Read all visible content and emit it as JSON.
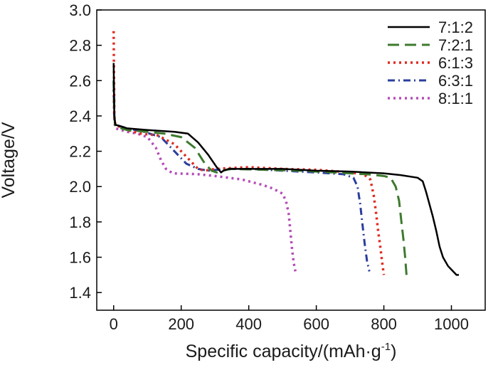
{
  "chart_data": {
    "type": "line",
    "title": "",
    "xlabel": "Specific capacity/(mAh·g",
    "xlabel_sup": "-1",
    "xlabel_close": ")",
    "ylabel": "Voltage/V",
    "xlim": [
      -50,
      1100
    ],
    "ylim": [
      1.3,
      3.0
    ],
    "xticks": [
      0,
      200,
      400,
      600,
      800,
      1000
    ],
    "yticks": [
      1.4,
      1.6,
      1.8,
      2.0,
      2.2,
      2.4,
      2.6,
      2.8,
      3.0
    ],
    "ytick_labels": [
      "1.4",
      "1.6",
      "1.8",
      "2.0",
      "2.2",
      "2.4",
      "2.6",
      "2.8",
      "3.0"
    ],
    "legend_position": "top-right",
    "series": [
      {
        "name": "7:1:2",
        "color": "#000000",
        "dash": "solid",
        "points": [
          [
            0,
            2.7
          ],
          [
            2,
            2.4
          ],
          [
            5,
            2.35
          ],
          [
            40,
            2.33
          ],
          [
            100,
            2.32
          ],
          [
            180,
            2.31
          ],
          [
            220,
            2.3
          ],
          [
            250,
            2.25
          ],
          [
            280,
            2.18
          ],
          [
            305,
            2.11
          ],
          [
            318,
            2.08
          ],
          [
            325,
            2.09
          ],
          [
            340,
            2.1
          ],
          [
            400,
            2.1
          ],
          [
            500,
            2.1
          ],
          [
            600,
            2.09
          ],
          [
            700,
            2.085
          ],
          [
            800,
            2.075
          ],
          [
            850,
            2.065
          ],
          [
            900,
            2.05
          ],
          [
            915,
            2.03
          ],
          [
            925,
            1.97
          ],
          [
            935,
            1.9
          ],
          [
            945,
            1.83
          ],
          [
            955,
            1.75
          ],
          [
            965,
            1.66
          ],
          [
            975,
            1.6
          ],
          [
            990,
            1.55
          ],
          [
            1005,
            1.52
          ],
          [
            1015,
            1.5
          ],
          [
            1022,
            1.5
          ]
        ]
      },
      {
        "name": "7:2:1",
        "color": "#3d7a2e",
        "dash": "long-dash",
        "points": [
          [
            0,
            2.6
          ],
          [
            2,
            2.4
          ],
          [
            5,
            2.34
          ],
          [
            40,
            2.32
          ],
          [
            100,
            2.31
          ],
          [
            150,
            2.3
          ],
          [
            200,
            2.28
          ],
          [
            240,
            2.22
          ],
          [
            270,
            2.13
          ],
          [
            290,
            2.09
          ],
          [
            305,
            2.08
          ],
          [
            320,
            2.09
          ],
          [
            350,
            2.1
          ],
          [
            450,
            2.095
          ],
          [
            550,
            2.09
          ],
          [
            650,
            2.08
          ],
          [
            750,
            2.07
          ],
          [
            800,
            2.06
          ],
          [
            820,
            2.05
          ],
          [
            835,
            2.0
          ],
          [
            845,
            1.92
          ],
          [
            852,
            1.8
          ],
          [
            858,
            1.7
          ],
          [
            863,
            1.6
          ],
          [
            867,
            1.5
          ]
        ]
      },
      {
        "name": "6:1:3",
        "color": "#e02a20",
        "dash": "dotted",
        "points": [
          [
            0,
            2.88
          ],
          [
            2,
            2.4
          ],
          [
            5,
            2.35
          ],
          [
            40,
            2.32
          ],
          [
            80,
            2.3
          ],
          [
            130,
            2.29
          ],
          [
            180,
            2.24
          ],
          [
            220,
            2.16
          ],
          [
            250,
            2.1
          ],
          [
            270,
            2.09
          ],
          [
            300,
            2.1
          ],
          [
            400,
            2.11
          ],
          [
            500,
            2.1
          ],
          [
            600,
            2.095
          ],
          [
            700,
            2.08
          ],
          [
            740,
            2.07
          ],
          [
            760,
            2.04
          ],
          [
            770,
            1.95
          ],
          [
            777,
            1.85
          ],
          [
            783,
            1.75
          ],
          [
            790,
            1.65
          ],
          [
            795,
            1.57
          ],
          [
            800,
            1.5
          ]
        ]
      },
      {
        "name": "6:3:1",
        "color": "#2b3e9c",
        "dash": "dash-dot",
        "points": [
          [
            0,
            2.6
          ],
          [
            2,
            2.4
          ],
          [
            5,
            2.35
          ],
          [
            40,
            2.33
          ],
          [
            90,
            2.31
          ],
          [
            140,
            2.28
          ],
          [
            180,
            2.2
          ],
          [
            215,
            2.13
          ],
          [
            250,
            2.1
          ],
          [
            280,
            2.09
          ],
          [
            330,
            2.1
          ],
          [
            400,
            2.1
          ],
          [
            500,
            2.09
          ],
          [
            600,
            2.08
          ],
          [
            680,
            2.07
          ],
          [
            710,
            2.05
          ],
          [
            722,
            2.0
          ],
          [
            730,
            1.9
          ],
          [
            737,
            1.78
          ],
          [
            743,
            1.68
          ],
          [
            750,
            1.58
          ],
          [
            757,
            1.52
          ]
        ]
      },
      {
        "name": "8:1:1",
        "color": "#b54bb8",
        "dash": "dotted",
        "points": [
          [
            0,
            2.55
          ],
          [
            2,
            2.38
          ],
          [
            5,
            2.33
          ],
          [
            40,
            2.31
          ],
          [
            70,
            2.3
          ],
          [
            100,
            2.28
          ],
          [
            125,
            2.22
          ],
          [
            140,
            2.15
          ],
          [
            155,
            2.1
          ],
          [
            175,
            2.075
          ],
          [
            250,
            2.07
          ],
          [
            300,
            2.06
          ],
          [
            380,
            2.04
          ],
          [
            440,
            2.01
          ],
          [
            470,
            1.99
          ],
          [
            500,
            1.96
          ],
          [
            510,
            1.92
          ],
          [
            518,
            1.85
          ],
          [
            523,
            1.75
          ],
          [
            528,
            1.65
          ],
          [
            533,
            1.57
          ],
          [
            538,
            1.52
          ]
        ]
      }
    ]
  }
}
